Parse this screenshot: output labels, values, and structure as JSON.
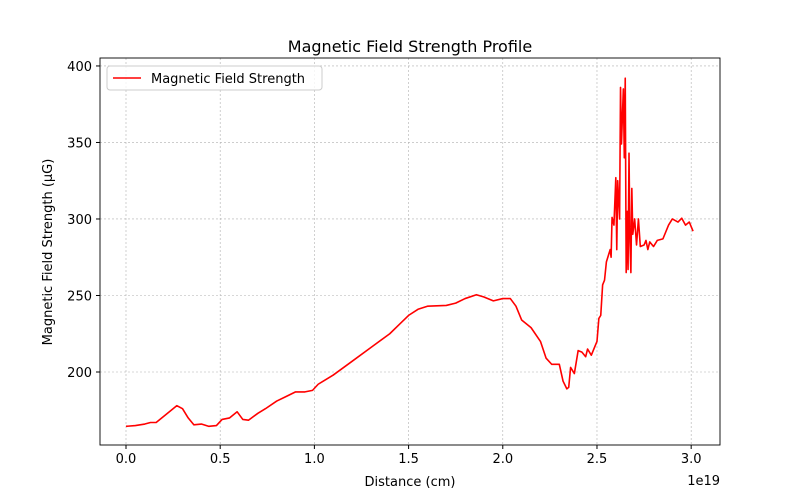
{
  "chart_data": {
    "type": "line",
    "title": "Magnetic Field Strength Profile",
    "x_label": "Distance (cm)",
    "y_label": "Magnetic Field Strength (μG)",
    "x_offset_label": "1e19",
    "legend": "upper left",
    "grid": true,
    "xlim": [
      -1.38e+18,
      3.153e+19
    ],
    "ylim": [
      152.3,
      405.2
    ],
    "xticks": [
      {
        "value": 0,
        "label": "0.0"
      },
      {
        "value": 5e+18,
        "label": "0.5"
      },
      {
        "value": 1e+19,
        "label": "1.0"
      },
      {
        "value": 1.5e+19,
        "label": "1.5"
      },
      {
        "value": 2e+19,
        "label": "2.0"
      },
      {
        "value": 2.5e+19,
        "label": "2.5"
      },
      {
        "value": 3e+19,
        "label": "3.0"
      }
    ],
    "yticks": [
      200,
      250,
      300,
      350,
      400
    ],
    "x": [
      0,
      5e+17,
      1e+18,
      1.3e+18,
      1.6e+18,
      2e+18,
      2.4e+18,
      2.7e+18,
      3e+18,
      3.3e+18,
      3.6e+18,
      4e+18,
      4.4e+18,
      4.8e+18,
      5.1e+18,
      5.5e+18,
      5.9e+18,
      6.2e+18,
      6.5e+18,
      7e+18,
      7.4e+18,
      8e+18,
      8.5e+18,
      9e+18,
      9.5e+18,
      9.9e+18,
      1.02e+19,
      1.1e+19,
      1.2e+19,
      1.3e+19,
      1.4e+19,
      1.45e+19,
      1.5e+19,
      1.55e+19,
      1.6e+19,
      1.7e+19,
      1.75e+19,
      1.8e+19,
      1.86e+19,
      1.9e+19,
      1.95e+19,
      2e+19,
      2.04e+19,
      2.07e+19,
      2.1e+19,
      2.15e+19,
      2.2e+19,
      2.23e+19,
      2.26e+19,
      2.3e+19,
      2.32e+19,
      2.34e+19,
      2.35e+19,
      2.36e+19,
      2.38e+19,
      2.4e+19,
      2.42e+19,
      2.44e+19,
      2.45e+19,
      2.47e+19,
      2.49e+19,
      2.5e+19,
      2.51e+19,
      2.52e+19,
      2.53e+19,
      2.54e+19,
      2.55e+19,
      2.56e+19,
      2.57e+19,
      2.575e+19,
      2.58e+19,
      2.59e+19,
      2.6e+19,
      2.605e+19,
      2.61e+19,
      2.62e+19,
      2.625e+19,
      2.63e+19,
      2.64e+19,
      2.645e+19,
      2.65e+19,
      2.655e+19,
      2.66e+19,
      2.665e+19,
      2.67e+19,
      2.675e+19,
      2.68e+19,
      2.685e+19,
      2.69e+19,
      2.7e+19,
      2.71e+19,
      2.72e+19,
      2.73e+19,
      2.75e+19,
      2.76e+19,
      2.77e+19,
      2.78e+19,
      2.8e+19,
      2.82e+19,
      2.85e+19,
      2.88e+19,
      2.9e+19,
      2.93e+19,
      2.95e+19,
      2.97e+19,
      2.99e+19,
      3.01e+19
    ],
    "series": [
      {
        "name": "Magnetic Field Strength",
        "color": "#ff0000",
        "values": [
          164.5,
          165,
          166,
          167,
          167,
          171,
          175,
          178,
          176,
          170,
          165.5,
          166,
          164.5,
          165,
          169,
          170,
          174,
          169,
          168.5,
          173,
          176,
          181,
          184,
          187,
          187,
          188,
          192,
          198,
          207,
          216,
          225,
          231,
          237,
          241,
          243,
          243.5,
          245,
          248,
          250.5,
          249,
          246.5,
          248,
          248,
          243,
          234,
          229,
          220,
          209,
          205,
          205,
          194,
          189,
          190,
          203,
          199,
          214,
          213,
          210,
          215,
          211,
          217,
          220,
          235,
          237,
          257,
          260,
          272,
          276,
          280,
          275,
          301,
          296,
          327,
          280,
          325,
          300,
          386,
          349,
          385,
          340,
          392,
          265,
          305,
          267,
          343,
          285,
          265,
          320,
          290,
          300,
          283,
          300,
          282,
          283,
          286,
          280,
          285,
          282,
          286,
          287,
          296,
          300,
          298,
          300.5,
          296,
          298,
          292
        ]
      }
    ]
  }
}
